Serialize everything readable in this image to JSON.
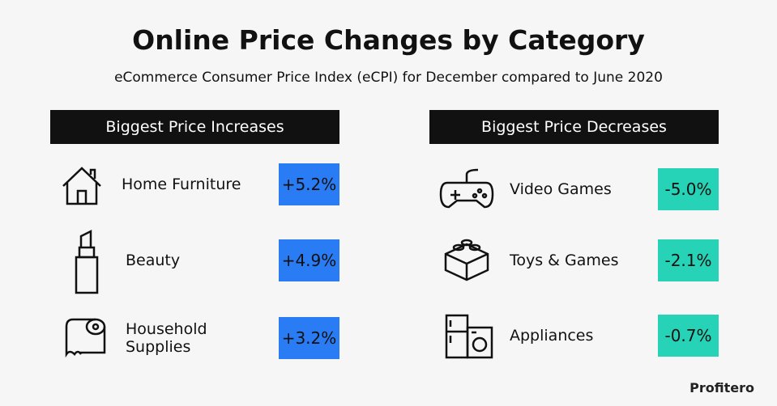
{
  "title": "Online Price Changes by Category",
  "subtitle": "eCommerce Consumer Price Index (eCPI) for December compared to June 2020",
  "panels": [
    {
      "heading": "Biggest Price Increases",
      "items": [
        {
          "label": "Home Furniture",
          "value": "+5.2%"
        },
        {
          "label": "Beauty",
          "value": "+4.9%"
        },
        {
          "label": "Household Supplies",
          "value": "+3.2%"
        }
      ]
    },
    {
      "heading": "Biggest Price Decreases",
      "items": [
        {
          "label": "Video Games",
          "value": "-5.0%"
        },
        {
          "label": "Toys & Games",
          "value": "-2.1%"
        },
        {
          "label": "Appliances",
          "value": "-0.7%"
        }
      ]
    }
  ],
  "brand": "Profitero"
}
